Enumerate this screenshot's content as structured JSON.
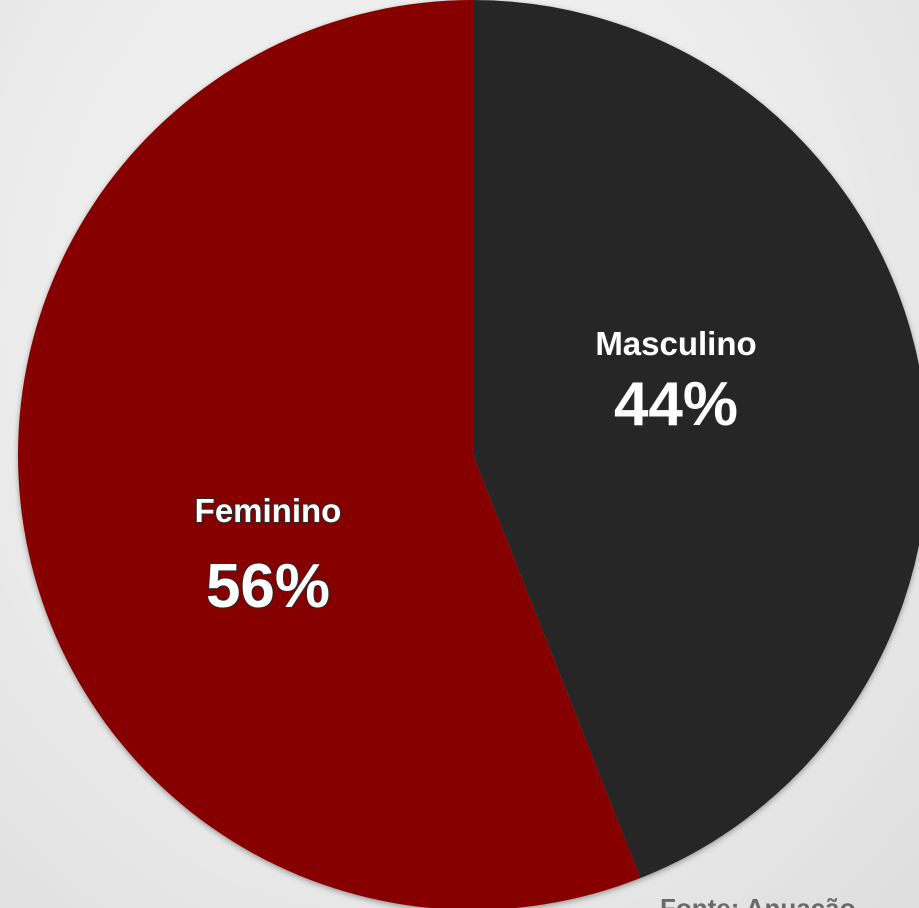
{
  "chart_data": {
    "type": "pie",
    "slices": [
      {
        "label": "Masculino",
        "value": 44,
        "value_label": "44%",
        "color": "#262626"
      },
      {
        "label": "Feminino",
        "value": 56,
        "value_label": "56%",
        "color": "#870404"
      }
    ],
    "start": "12 o'clock",
    "direction": "clockwise"
  },
  "footer": {
    "source_partial": "Fonte: Anuação"
  },
  "colors": {
    "background": "#ececec",
    "label_text": "#ffffff",
    "footer_text": "#6a6a6a"
  }
}
